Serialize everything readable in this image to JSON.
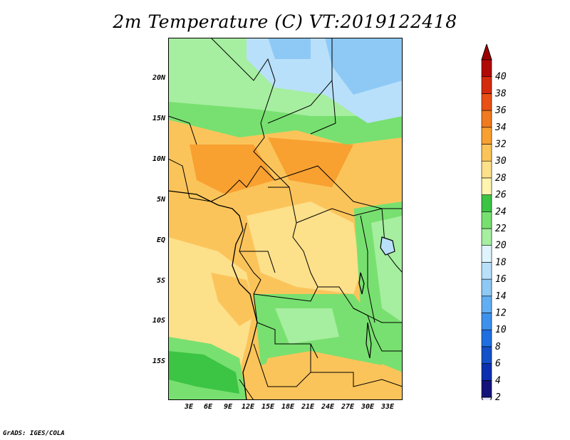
{
  "title": "2m Temperature (C) VT:2019122418",
  "latitude_labels": [
    "20N",
    "15N",
    "10N",
    "5N",
    "EQ",
    "5S",
    "10S",
    "15S"
  ],
  "longitude_labels": [
    "3E",
    "6E",
    "9E",
    "12E",
    "15E",
    "18E",
    "21E",
    "24E",
    "27E",
    "30E",
    "33E"
  ],
  "colorbar": {
    "labels": [
      "2",
      "4",
      "6",
      "8",
      "10",
      "12",
      "14",
      "16",
      "18",
      "20",
      "22",
      "24",
      "26",
      "28",
      "30",
      "32",
      "34",
      "36",
      "38",
      "40"
    ],
    "colors": [
      "#13137a",
      "#0b2fae",
      "#1450c8",
      "#1f6fe0",
      "#3d91ec",
      "#62aef2",
      "#8ec9f6",
      "#b9e0fa",
      "#dff4fc",
      "#a6eea0",
      "#78e070",
      "#3cc444",
      "#fff5b0",
      "#fde08a",
      "#fbc45a",
      "#f8a030",
      "#f07a20",
      "#e85015",
      "#d42a0e",
      "#b00a08"
    ],
    "under_color": "#e6e6ff",
    "over_color": "#9e0000"
  },
  "colors": {
    "cold_blue": "#8ec9f6",
    "green": "#78e070",
    "light_green": "#a6eea0",
    "dark_green": "#3cc444",
    "pale_yellow": "#fde08a",
    "orange": "#fbc45a",
    "dark_orange": "#f8a030",
    "red_orange": "#f07a20"
  },
  "credit": "GrADS: IGES/COLA"
}
